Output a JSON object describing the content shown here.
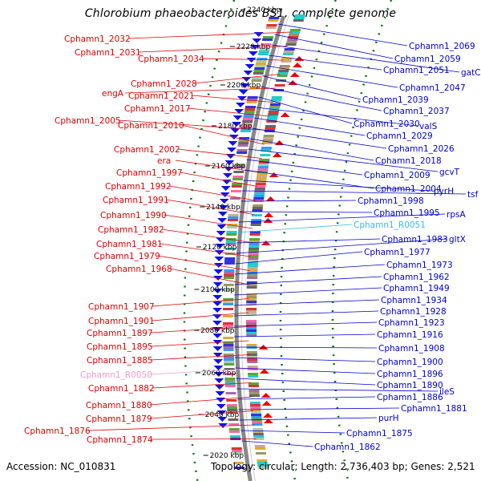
{
  "title": "Chlorobium phaeobacteroides BS1, complete genome",
  "footer": {
    "accession": "Accession: NC_010831",
    "topology": "Topology: circular; Length: 2,736,403 bp; Genes: 2,521"
  },
  "colors": {
    "left_labels": "#dd0000",
    "right_labels": "#0000cc",
    "rna_left": "#ee99cc",
    "rna_right": "#33bbee",
    "ticks": "#007700",
    "backbone": "#888888"
  },
  "kbp_ticks": [
    "2240 kbp",
    "2220 kbp",
    "2200 kbp",
    "2180 kbp",
    "2160 kbp",
    "2140 kbp",
    "2120 kbp",
    "2100 kbp",
    "2080 kbp",
    "2060 kbp",
    "2040 kbp",
    "2020 kbp"
  ],
  "left_labels": [
    {
      "text": "Cphamn1_2032"
    },
    {
      "text": "Cphamn1_2031"
    },
    {
      "text": "Cphamn1_2034"
    },
    {
      "text": "Cphamn1_2028"
    },
    {
      "text": "engA"
    },
    {
      "text": "Cphamn1_2021"
    },
    {
      "text": "Cphamn1_2017"
    },
    {
      "text": "Cphamn1_2005"
    },
    {
      "text": "Cphamn1_2010"
    },
    {
      "text": "Cphamn1_2002"
    },
    {
      "text": "era"
    },
    {
      "text": "Cphamn1_1997"
    },
    {
      "text": "Cphamn1_1992"
    },
    {
      "text": "Cphamn1_1991"
    },
    {
      "text": "Cphamn1_1990"
    },
    {
      "text": "Cphamn1_1982"
    },
    {
      "text": "Cphamn1_1981"
    },
    {
      "text": "Cphamn1_1979"
    },
    {
      "text": "Cphamn1_1968"
    },
    {
      "text": "Cphamn1_1907"
    },
    {
      "text": "Cphamn1_1901"
    },
    {
      "text": "Cphamn1_1897"
    },
    {
      "text": "Cphamn1_1895"
    },
    {
      "text": "Cphamn1_1885"
    },
    {
      "text": "Cphamn1_R0050"
    },
    {
      "text": "Cphamn1_1882"
    },
    {
      "text": "Cphamn1_1880"
    },
    {
      "text": "Cphamn1_1879"
    },
    {
      "text": "Cphamn1_1876"
    },
    {
      "text": "Cphamn1_1874"
    }
  ],
  "right_labels": [
    {
      "text": "Cphamn1_2069"
    },
    {
      "text": "Cphamn1_2059"
    },
    {
      "text": "gatC"
    },
    {
      "text": "Cphamn1_2051"
    },
    {
      "text": "Cphamn1_2047"
    },
    {
      "text": "Cphamn1_2039"
    },
    {
      "text": "Cphamn1_2037"
    },
    {
      "text": "Cphamn1_2030"
    },
    {
      "text": "valS"
    },
    {
      "text": "Cphamn1_2029"
    },
    {
      "text": "Cphamn1_2026"
    },
    {
      "text": "Cphamn1_2018"
    },
    {
      "text": "gcvT"
    },
    {
      "text": "Cphamn1_2009"
    },
    {
      "text": "Cphamn1_2004"
    },
    {
      "text": "pyrH"
    },
    {
      "text": "tsf"
    },
    {
      "text": "Cphamn1_1998"
    },
    {
      "text": "Cphamn1_1995"
    },
    {
      "text": "rpsA"
    },
    {
      "text": "Cphamn1_R0051"
    },
    {
      "text": "Cphamn1_1983"
    },
    {
      "text": "gltX"
    },
    {
      "text": "Cphamn1_1977"
    },
    {
      "text": "Cphamn1_1973"
    },
    {
      "text": "Cphamn1_1962"
    },
    {
      "text": "Cphamn1_1949"
    },
    {
      "text": "Cphamn1_1934"
    },
    {
      "text": "Cphamn1_1928"
    },
    {
      "text": "Cphamn1_1923"
    },
    {
      "text": "Cphamn1_1916"
    },
    {
      "text": "Cphamn1_1908"
    },
    {
      "text": "Cphamn1_1900"
    },
    {
      "text": "Cphamn1_1896"
    },
    {
      "text": "Cphamn1_1890"
    },
    {
      "text": "ileS"
    },
    {
      "text": "Cphamn1_1886"
    },
    {
      "text": "Cphamn1_1881"
    },
    {
      "text": "purH"
    },
    {
      "text": "Cphamn1_1875"
    },
    {
      "text": "Cphamn1_1862"
    }
  ]
}
